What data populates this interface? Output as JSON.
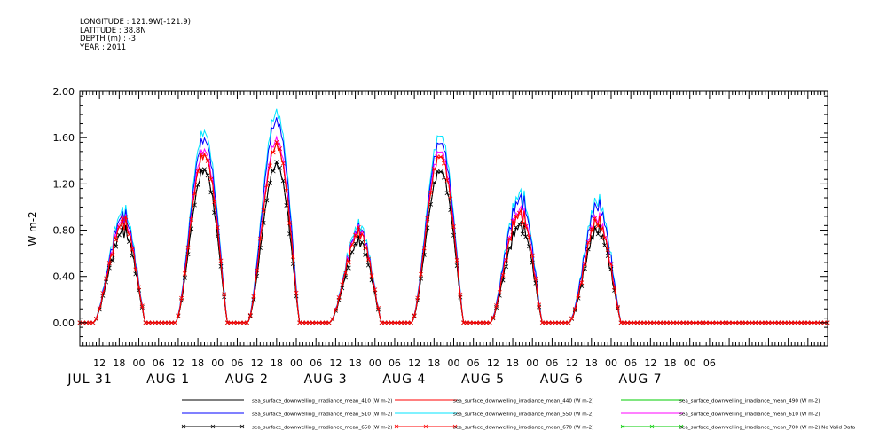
{
  "header": {
    "lines": [
      "LONGITUDE : 121.9W(-121.9)",
      "LATITUDE : 38.8N",
      "DEPTH (m) : -3",
      "YEAR : 2011"
    ]
  },
  "chart_data": {
    "type": "line",
    "title": "",
    "xlabel": "",
    "ylabel": "W m-2",
    "ylim": [
      -0.2,
      2.0
    ],
    "xlim_hours": [
      -12,
      216
    ],
    "y_ticks": [
      "0.00",
      "0.40",
      "0.80",
      "1.20",
      "1.60",
      "2.00"
    ],
    "y_tick_values": [
      0.0,
      0.4,
      0.8,
      1.2,
      1.6,
      2.0
    ],
    "x_hour_ticks": [
      "12",
      "18",
      "00",
      "06",
      "12",
      "18",
      "00",
      "06",
      "12",
      "18",
      "00",
      "06",
      "12",
      "18",
      "00",
      "06",
      "12",
      "18",
      "00",
      "06",
      "12",
      "18",
      "00",
      "06",
      "12",
      "18",
      "00",
      "06",
      "12",
      "18",
      "00",
      "06"
    ],
    "x_date_labels": [
      "JUL 31",
      "AUG 1",
      "AUG 2",
      "AUG 3",
      "AUG 4",
      "AUG 5",
      "AUG 6",
      "AUG 7"
    ],
    "x_start": "2011-07-30 12:00",
    "grid": false,
    "legend_position": "bottom",
    "daily_peaks": [
      {
        "day": "JUL 31",
        "hour_offset": 1,
        "blue": 0.93,
        "red": 0.85,
        "black": 0.78
      },
      {
        "day": "AUG 1",
        "hour_offset": 26,
        "blue": 1.62,
        "red": 1.45,
        "black": 1.32
      },
      {
        "day": "AUG 2",
        "hour_offset": 48,
        "blue": 1.8,
        "red": 1.55,
        "black": 1.38
      },
      {
        "day": "AUG 3",
        "hour_offset": 73,
        "blue": 0.8,
        "red": 0.75,
        "black": 0.68
      },
      {
        "day": "AUG 4",
        "hour_offset": 98,
        "blue": 1.6,
        "red": 1.45,
        "black": 1.32
      },
      {
        "day": "AUG 5",
        "hour_offset": 122,
        "blue": 1.1,
        "red": 0.95,
        "black": 0.85
      },
      {
        "day": "AUG 6",
        "hour_offset": 146,
        "blue": 1.0,
        "red": 0.85,
        "black": 0.78
      }
    ],
    "series": [
      {
        "name": "sea_surface_downwelling_irradiance_mean_410 (W m-2)",
        "color": "#000000",
        "marker": "none",
        "scale": 0.88
      },
      {
        "name": "sea_surface_downwelling_irradiance_mean_440 (W m-2)",
        "color": "#ff0000",
        "marker": "none",
        "scale": 0.96
      },
      {
        "name": "sea_surface_downwelling_irradiance_mean_490 (W m-2)",
        "color": "#00cc00",
        "marker": "none",
        "scale": 1.0
      },
      {
        "name": "sea_surface_downwelling_irradiance_mean_510 (W m-2)",
        "color": "#0000ff",
        "marker": "none",
        "scale": 1.0
      },
      {
        "name": "sea_surface_downwelling_irradiance_mean_550 (W m-2)",
        "color": "#00e5ff",
        "marker": "none",
        "scale": 1.06
      },
      {
        "name": "sea_surface_downwelling_irradiance_mean_610 (W m-2)",
        "color": "#ff00ff",
        "marker": "none",
        "scale": 0.94
      },
      {
        "name": "sea_surface_downwelling_irradiance_mean_650 (W m-2)",
        "color": "#000000",
        "marker": "x",
        "scale": 0.86
      },
      {
        "name": "sea_surface_downwelling_irradiance_mean_670 (W m-2)",
        "color": "#ff0000",
        "marker": "x",
        "scale": 0.9
      },
      {
        "name": "sea_surface_downwelling_irradiance_mean_700 (W m-2) No Valid Data",
        "color": "#00cc00",
        "marker": "x",
        "scale": 0
      }
    ]
  }
}
